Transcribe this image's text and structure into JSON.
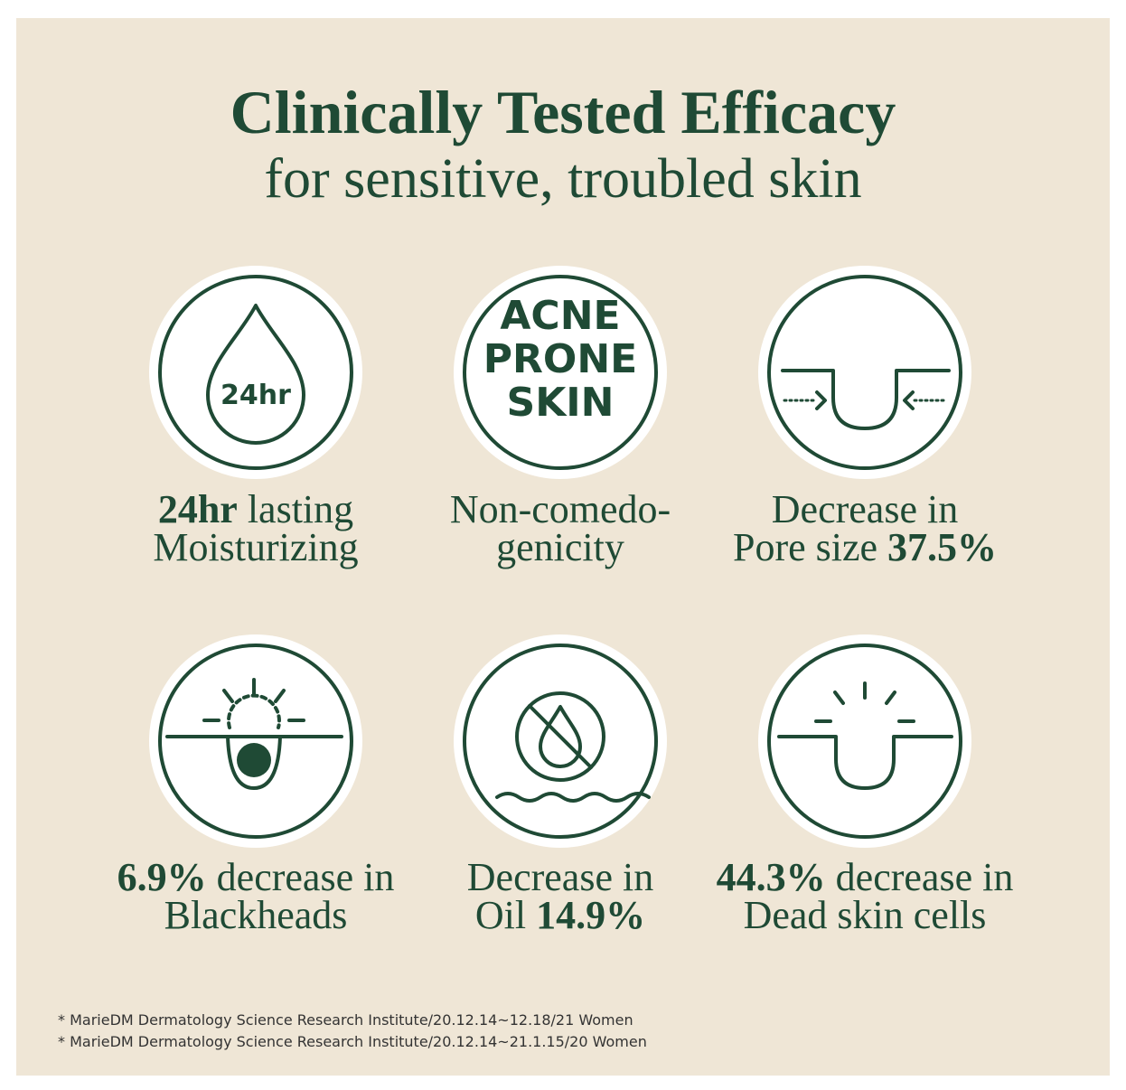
{
  "header": {
    "title": "Clinically Tested Efficacy",
    "subtitle": "for sensitive, troubled skin"
  },
  "items": [
    {
      "icon_text": [
        "24hr"
      ],
      "lines": [
        [
          {
            "text": "24hr",
            "bold": true
          },
          {
            "text": "lasting",
            "bold": false
          }
        ],
        [
          {
            "text": "Moisturizing",
            "bold": false
          }
        ]
      ]
    },
    {
      "icon_text": [
        "ACNE",
        "PRONE",
        "SKIN"
      ],
      "lines": [
        [
          {
            "text": "Non-comedo-",
            "bold": false
          }
        ],
        [
          {
            "text": "genicity",
            "bold": false
          }
        ]
      ]
    },
    {
      "icon_text": [],
      "lines": [
        [
          {
            "text": "Decrease in",
            "bold": false
          }
        ],
        [
          {
            "text": "Pore size",
            "bold": false
          },
          {
            "text": "37.5%",
            "bold": true
          }
        ]
      ]
    },
    {
      "icon_text": [],
      "lines": [
        [
          {
            "text": "6.9%",
            "bold": true
          },
          {
            "text": "decrease in",
            "bold": false
          }
        ],
        [
          {
            "text": "Blackheads",
            "bold": false
          }
        ]
      ]
    },
    {
      "icon_text": [],
      "lines": [
        [
          {
            "text": "Decrease in",
            "bold": false
          }
        ],
        [
          {
            "text": "Oil",
            "bold": false
          },
          {
            "text": "14.9%",
            "bold": true
          }
        ]
      ]
    },
    {
      "icon_text": [],
      "lines": [
        [
          {
            "text": "44.3%",
            "bold": true
          },
          {
            "text": "decrease in",
            "bold": false
          }
        ],
        [
          {
            "text": "Dead skin cells",
            "bold": false
          }
        ]
      ]
    }
  ],
  "footnotes": [
    "* MarieDM Dermatology Science Research Institute/20.12.14~12.18/21 Women",
    "* MarieDM Dermatology Science Research Institute/20.12.14~21.1.15/20 Women"
  ]
}
